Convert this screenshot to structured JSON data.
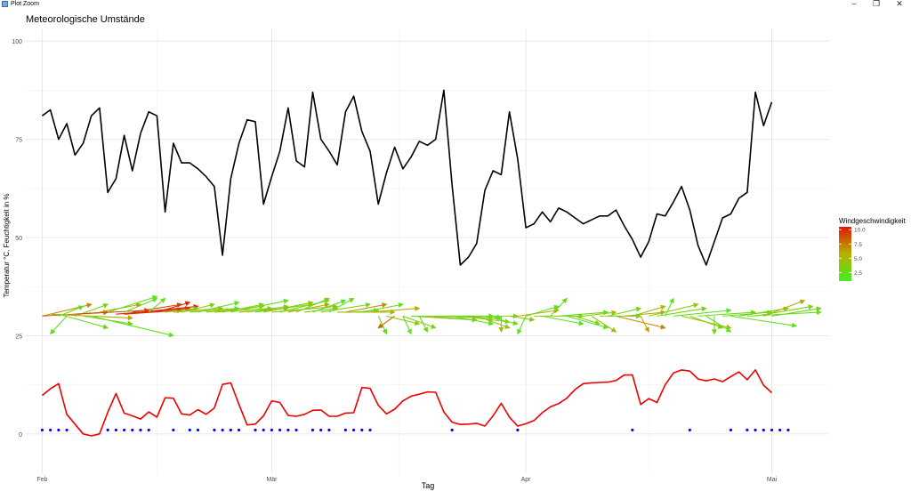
{
  "window": {
    "title": "Plot Zoom",
    "minimize_icon": "minimize-icon",
    "restore_icon": "restore-icon",
    "close_icon": "close-icon"
  },
  "chart_data": {
    "type": "line",
    "title": "Meteorologische Umstände",
    "xlabel": "Tag",
    "ylabel": "Temperatur °C, Feuchtigkeit in %",
    "ylim": [
      -10,
      103
    ],
    "yticks": [
      0,
      25,
      50,
      75,
      100
    ],
    "x_ticks": [
      {
        "day": 1,
        "label": "Feb"
      },
      {
        "day": 29,
        "label": "Mär"
      },
      {
        "day": 60,
        "label": "Apr"
      },
      {
        "day": 90,
        "label": "Mai"
      }
    ],
    "x_range_days": [
      -1,
      97
    ],
    "grid": true,
    "humidity": [
      81,
      82.5,
      75,
      79,
      71,
      74,
      81,
      83,
      61.5,
      65,
      76,
      67,
      76.5,
      82,
      81,
      56.5,
      74,
      69,
      69,
      67.5,
      65.5,
      63,
      45.5,
      65,
      74,
      80,
      79.5,
      58.5,
      65.5,
      72,
      83,
      69.5,
      68,
      87,
      75,
      72,
      68.5,
      82,
      86,
      77,
      72,
      58.5,
      66.5,
      73,
      67.5,
      70.5,
      74.5,
      73.5,
      75,
      87.5,
      63.5,
      43,
      45,
      48.5,
      62,
      67,
      66,
      82,
      70,
      52.5,
      53.5,
      56.5,
      54,
      57.5,
      56.5,
      55,
      53.5,
      54.5,
      55.5,
      55.5,
      57,
      53,
      49.5,
      45,
      49,
      56,
      55.5,
      59,
      63,
      57,
      48,
      43,
      49,
      55,
      56,
      60,
      61.5,
      87,
      78.5,
      84.5
    ],
    "temperature": [
      9.8,
      11.5,
      12.8,
      5,
      2.5,
      0,
      -0.5,
      0,
      5.5,
      10.3,
      5.3,
      4.6,
      3.8,
      5.6,
      4.3,
      9.2,
      9.1,
      5.1,
      4.8,
      6.2,
      5,
      6.6,
      12.6,
      13,
      7.5,
      2.3,
      2.5,
      4.6,
      8.4,
      8,
      4.7,
      4.5,
      5,
      6,
      6.1,
      4.5,
      4.5,
      5.3,
      5.4,
      11.8,
      11.6,
      7.3,
      5.1,
      6.3,
      8.4,
      9.6,
      10.1,
      10.7,
      10.6,
      5.6,
      3,
      2.4,
      2.5,
      2.7,
      2,
      4.6,
      7.8,
      4.3,
      2,
      2.6,
      3.4,
      5.4,
      6.9,
      7.7,
      9.1,
      11.3,
      12.8,
      13,
      13.1,
      13.2,
      13.6,
      15,
      15,
      7.5,
      9,
      8,
      12.5,
      15.5,
      16.3,
      16,
      14,
      13.5,
      14,
      13.3,
      14.6,
      15.8,
      13.8,
      16.3,
      12.4,
      10.5
    ],
    "precipitation_days": [
      1,
      2,
      3,
      4,
      9,
      10,
      11,
      12,
      13,
      14,
      17,
      19,
      20,
      22,
      23,
      24,
      25,
      27,
      28,
      29,
      30,
      31,
      32,
      34,
      35,
      36,
      38,
      39,
      40,
      41,
      51,
      59,
      73,
      80,
      85,
      87,
      88,
      89,
      90,
      91,
      92
    ],
    "precipitation_value": 1,
    "wind": {
      "legend_title": "Windgeschwindigkeit",
      "legend_ticks": [
        10.0,
        7.5,
        5.0,
        2.5
      ],
      "legend_tick_labels": [
        "10.0",
        "7.5",
        "5.0",
        "2.5"
      ],
      "speed_range": [
        1.0,
        10.5
      ],
      "color_low": "#44ee22",
      "color_mid": "#b8b000",
      "color_high": "#e01800",
      "arrows": [
        {
          "day": 1,
          "y": 30,
          "dx": 6,
          "dy": 3,
          "speed": 7
        },
        {
          "day": 1,
          "y": 30,
          "dx": 8,
          "dy": 1,
          "speed": 8
        },
        {
          "day": 2,
          "y": 30.5,
          "dx": 10,
          "dy": -1,
          "speed": 6
        },
        {
          "day": 3,
          "y": 30.5,
          "dx": 6,
          "dy": -3.5,
          "speed": 3
        },
        {
          "day": 3,
          "y": 30,
          "dx": 3,
          "dy": 2.5,
          "speed": 2
        },
        {
          "day": 4,
          "y": 30,
          "dx": -2,
          "dy": -4.5,
          "speed": 2
        },
        {
          "day": 5,
          "y": 30,
          "dx": 4,
          "dy": 3,
          "speed": 3
        },
        {
          "day": 5,
          "y": 30.5,
          "dx": 9,
          "dy": 1,
          "speed": 9
        },
        {
          "day": 6,
          "y": 30,
          "dx": 6,
          "dy": -2,
          "speed": 3
        },
        {
          "day": 7,
          "y": 30,
          "dx": 10,
          "dy": -5,
          "speed": 2
        },
        {
          "day": 8,
          "y": 31,
          "dx": 5,
          "dy": 2,
          "speed": 6
        },
        {
          "day": 9,
          "y": 31,
          "dx": 6,
          "dy": 4,
          "speed": 2
        },
        {
          "day": 10,
          "y": 30.5,
          "dx": 9,
          "dy": 1.5,
          "speed": 10
        },
        {
          "day": 11,
          "y": 30.5,
          "dx": 7,
          "dy": 1,
          "speed": 10
        },
        {
          "day": 11,
          "y": 31,
          "dx": 4,
          "dy": 3.5,
          "speed": 2
        },
        {
          "day": 12,
          "y": 31,
          "dx": 6,
          "dy": 2,
          "speed": 9
        },
        {
          "day": 13,
          "y": 31,
          "dx": 7,
          "dy": 1.5,
          "speed": 10
        },
        {
          "day": 14,
          "y": 31,
          "dx": 2,
          "dy": 3.5,
          "speed": 2
        },
        {
          "day": 15,
          "y": 31,
          "dx": 4,
          "dy": 2.5,
          "speed": 10
        },
        {
          "day": 16,
          "y": 31,
          "dx": 4,
          "dy": 1,
          "speed": 4
        },
        {
          "day": 17,
          "y": 31,
          "dx": 6,
          "dy": 1,
          "speed": 5
        },
        {
          "day": 18,
          "y": 31,
          "dx": 4,
          "dy": 2,
          "speed": 4
        },
        {
          "day": 19,
          "y": 31,
          "dx": 6,
          "dy": 1,
          "speed": 3
        },
        {
          "day": 20,
          "y": 31,
          "dx": 5,
          "dy": 2.5,
          "speed": 2
        },
        {
          "day": 21,
          "y": 31,
          "dx": 7,
          "dy": 1.5,
          "speed": 5
        },
        {
          "day": 22,
          "y": 31,
          "dx": 7,
          "dy": 1,
          "speed": 4
        },
        {
          "day": 23,
          "y": 31,
          "dx": 5,
          "dy": 2,
          "speed": 3
        },
        {
          "day": 24,
          "y": 31,
          "dx": 7,
          "dy": 3,
          "speed": 2
        },
        {
          "day": 25,
          "y": 31,
          "dx": 6,
          "dy": 1,
          "speed": 6
        },
        {
          "day": 26,
          "y": 31,
          "dx": 5,
          "dy": 1.5,
          "speed": 3
        },
        {
          "day": 27,
          "y": 31,
          "dx": 7,
          "dy": 2,
          "speed": 2
        },
        {
          "day": 28,
          "y": 31,
          "dx": 6,
          "dy": 2.5,
          "speed": 5
        },
        {
          "day": 29,
          "y": 31,
          "dx": 8,
          "dy": 1.5,
          "speed": 4
        },
        {
          "day": 30,
          "y": 31,
          "dx": 6,
          "dy": 3,
          "speed": 2
        },
        {
          "day": 31,
          "y": 31,
          "dx": 5,
          "dy": 2,
          "speed": 6
        },
        {
          "day": 32,
          "y": 31,
          "dx": 4,
          "dy": 3.5,
          "speed": 3
        },
        {
          "day": 33,
          "y": 31,
          "dx": 4,
          "dy": 1,
          "speed": 4
        },
        {
          "day": 34,
          "y": 31,
          "dx": 4,
          "dy": 3,
          "speed": 2
        },
        {
          "day": 35,
          "y": 31,
          "dx": 6,
          "dy": 2,
          "speed": 3
        },
        {
          "day": 36,
          "y": 31,
          "dx": 3,
          "dy": 3.5,
          "speed": 2
        },
        {
          "day": 37,
          "y": 31,
          "dx": 7,
          "dy": 0,
          "speed": 5
        },
        {
          "day": 38,
          "y": 31,
          "dx": 5,
          "dy": 2,
          "speed": 7
        },
        {
          "day": 39,
          "y": 31,
          "dx": 3,
          "dy": 0.5,
          "speed": 3
        },
        {
          "day": 40,
          "y": 31,
          "dx": 5,
          "dy": 2,
          "speed": 2
        },
        {
          "day": 41,
          "y": 31,
          "dx": 6,
          "dy": 1,
          "speed": 6
        },
        {
          "day": 42,
          "y": 30,
          "dx": 1,
          "dy": -4.5,
          "speed": 2
        },
        {
          "day": 43,
          "y": 30,
          "dx": 4,
          "dy": -2,
          "speed": 4
        },
        {
          "day": 44,
          "y": 30,
          "dx": -2,
          "dy": -3,
          "speed": 8
        },
        {
          "day": 45,
          "y": 30,
          "dx": 4,
          "dy": -3,
          "speed": 3
        },
        {
          "day": 45,
          "y": 30,
          "dx": 1,
          "dy": -4.5,
          "speed": 2
        },
        {
          "day": 46,
          "y": 30,
          "dx": 8,
          "dy": -1,
          "speed": 5
        },
        {
          "day": 46,
          "y": 30,
          "dx": 10,
          "dy": 0,
          "speed": 2
        },
        {
          "day": 47,
          "y": 30,
          "dx": 1,
          "dy": -4,
          "speed": 3
        },
        {
          "day": 48,
          "y": 30,
          "dx": 6,
          "dy": -1,
          "speed": 4
        },
        {
          "day": 49,
          "y": 30,
          "dx": 8,
          "dy": -0.5,
          "speed": 2
        },
        {
          "day": 50,
          "y": 30,
          "dx": 9,
          "dy": 0,
          "speed": 3
        },
        {
          "day": 51,
          "y": 30,
          "dx": 5,
          "dy": -2,
          "speed": 2
        },
        {
          "day": 52,
          "y": 30,
          "dx": 6,
          "dy": -1.5,
          "speed": 3
        },
        {
          "day": 53,
          "y": 30,
          "dx": 3,
          "dy": -1,
          "speed": 4
        },
        {
          "day": 54,
          "y": 30,
          "dx": 4,
          "dy": -3,
          "speed": 5
        },
        {
          "day": 55,
          "y": 30,
          "dx": 4,
          "dy": -2,
          "speed": 3
        },
        {
          "day": 56,
          "y": 30,
          "dx": 1,
          "dy": -0.5,
          "speed": 2
        },
        {
          "day": 57,
          "y": 30,
          "dx": 0,
          "dy": -4,
          "speed": 5
        },
        {
          "day": 58,
          "y": 30,
          "dx": 3,
          "dy": -1,
          "speed": 4
        },
        {
          "day": 59,
          "y": 30,
          "dx": 5,
          "dy": 1.5,
          "speed": 6
        },
        {
          "day": 60,
          "y": 30,
          "dx": 4,
          "dy": 2.5,
          "speed": 2
        },
        {
          "day": 60,
          "y": 30,
          "dx": -1,
          "dy": -4.5,
          "speed": 2
        },
        {
          "day": 61,
          "y": 30,
          "dx": 6,
          "dy": 0,
          "speed": 4
        },
        {
          "day": 62,
          "y": 30,
          "dx": 5,
          "dy": -2,
          "speed": 2
        },
        {
          "day": 63,
          "y": 30,
          "dx": 2,
          "dy": 4.5,
          "speed": 3
        },
        {
          "day": 64,
          "y": 30,
          "dx": 6,
          "dy": 1,
          "speed": 2
        },
        {
          "day": 65,
          "y": 30,
          "dx": 5,
          "dy": -3,
          "speed": 2
        },
        {
          "day": 66,
          "y": 30,
          "dx": 3,
          "dy": -2,
          "speed": 3
        },
        {
          "day": 67,
          "y": 30,
          "dx": 4,
          "dy": 1,
          "speed": 5
        },
        {
          "day": 68,
          "y": 30,
          "dx": 3,
          "dy": -4,
          "speed": 4
        },
        {
          "day": 69,
          "y": 30,
          "dx": 5,
          "dy": 0,
          "speed": 2
        },
        {
          "day": 70,
          "y": 30,
          "dx": 4,
          "dy": 2,
          "speed": 3
        },
        {
          "day": 71,
          "y": 30,
          "dx": 6,
          "dy": -3,
          "speed": 7
        },
        {
          "day": 72,
          "y": 30,
          "dx": 5,
          "dy": 1,
          "speed": 6
        },
        {
          "day": 73,
          "y": 30,
          "dx": 4,
          "dy": 2.5,
          "speed": 5
        },
        {
          "day": 74,
          "y": 30,
          "dx": 1,
          "dy": -4,
          "speed": 6
        },
        {
          "day": 75,
          "y": 30,
          "dx": 6,
          "dy": 3,
          "speed": 4
        },
        {
          "day": 76,
          "y": 30,
          "dx": 6,
          "dy": 2,
          "speed": 3
        },
        {
          "day": 77,
          "y": 30,
          "dx": 1,
          "dy": 4.5,
          "speed": 2
        },
        {
          "day": 78,
          "y": 30,
          "dx": 7,
          "dy": 1.5,
          "speed": 2
        },
        {
          "day": 79,
          "y": 30,
          "dx": 6,
          "dy": -3,
          "speed": 5
        },
        {
          "day": 80,
          "y": 30,
          "dx": 4,
          "dy": -3,
          "speed": 4
        },
        {
          "day": 81,
          "y": 30,
          "dx": 7,
          "dy": 1,
          "speed": 3
        },
        {
          "day": 82,
          "y": 30,
          "dx": 3,
          "dy": -4,
          "speed": 2
        },
        {
          "day": 83,
          "y": 30,
          "dx": 0,
          "dy": -4.5,
          "speed": 3
        },
        {
          "day": 84,
          "y": 30,
          "dx": 6,
          "dy": 1,
          "speed": 2
        },
        {
          "day": 85,
          "y": 30,
          "dx": 8,
          "dy": -2.5,
          "speed": 2
        },
        {
          "day": 86,
          "y": 30,
          "dx": 6,
          "dy": 2,
          "speed": 4
        },
        {
          "day": 87,
          "y": 30,
          "dx": 9,
          "dy": 1,
          "speed": 2
        },
        {
          "day": 88,
          "y": 30,
          "dx": 7,
          "dy": 2.5,
          "speed": 3
        },
        {
          "day": 89,
          "y": 30,
          "dx": 5,
          "dy": 4,
          "speed": 6
        },
        {
          "day": 90,
          "y": 30,
          "dx": 6,
          "dy": 2,
          "speed": 3
        }
      ]
    }
  }
}
